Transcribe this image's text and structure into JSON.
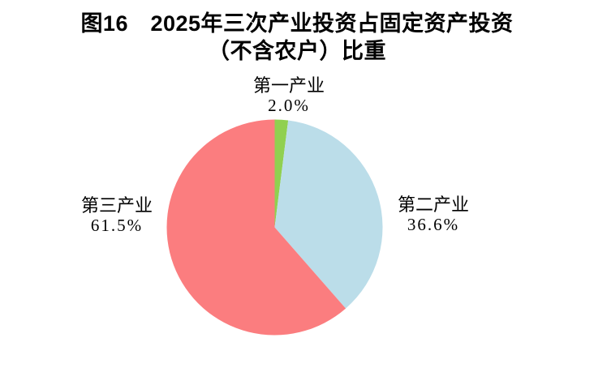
{
  "title": {
    "line1": "图16　2025年三次产业投资占固定资产投资",
    "line2": "（不含农户）比重"
  },
  "labels": {
    "primary": {
      "name": "第一产业",
      "value": "2.0%"
    },
    "secondary": {
      "name": "第二产业",
      "value": "36.6%"
    },
    "tertiary": {
      "name": "第三产业",
      "value": "61.5%"
    }
  },
  "colors": {
    "primary_green": "#90D050",
    "secondary_blue": "#BBDDE9",
    "tertiary_red": "#FB7D7F",
    "background": "#FFFFFF",
    "text": "#000000"
  },
  "chart_data": {
    "type": "pie",
    "title": "图16　2025年三次产业投资占固定资产投资（不含农户）比重",
    "slices": [
      {
        "label": "第一产业",
        "value": 2.0,
        "display": "2.0%",
        "color": "#90D050"
      },
      {
        "label": "第二产业",
        "value": 36.6,
        "display": "36.6%",
        "color": "#BBDDE9"
      },
      {
        "label": "第三产业",
        "value": 61.5,
        "display": "61.5%",
        "color": "#FB7D7F"
      }
    ],
    "start_angle_deg": 0,
    "direction": "clockwise",
    "legend_position": "none",
    "data_labels": "outside"
  }
}
